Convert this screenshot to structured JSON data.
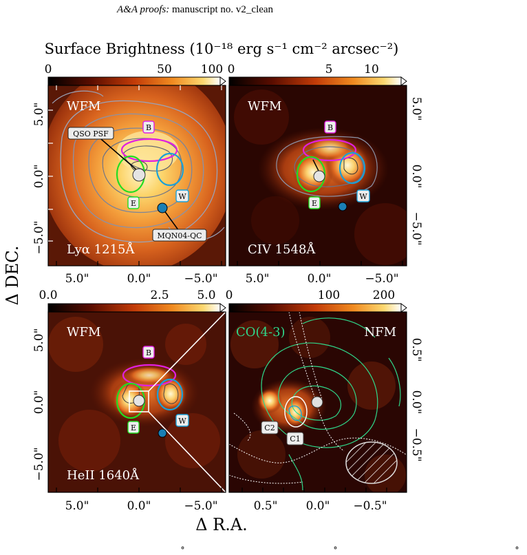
{
  "header": {
    "journal": "A&A proofs:",
    "manuscript": "manuscript no. v2_clean"
  },
  "figure": {
    "top_title": "Surface Brightness (10⁻¹⁸ erg s⁻¹ cm⁻² arcsec⁻²)",
    "ylabel": "Δ DEC.",
    "xlabel": "Δ R.A.",
    "colors": {
      "magenta": "#e020e0",
      "green": "#22dd22",
      "cyan": "#1aa0d8",
      "co_contour": "#2fd88a",
      "qc_dot": "#1a7fb5"
    },
    "panels": [
      {
        "id": "lya",
        "cbar_ticks": [
          "0",
          "50",
          "100"
        ],
        "mode": "WFM",
        "line": "Lyα 1215Å",
        "xticks": [
          "5.0\"",
          "0.0\"",
          "−5.0\""
        ],
        "yticks": [
          "5.0\"",
          "0.0\"",
          "−5.0\""
        ],
        "labels": {
          "B": "B",
          "E": "E",
          "W": "W"
        },
        "qso_label": "QSO PSF",
        "qc_label": "MQN04-QC"
      },
      {
        "id": "civ",
        "cbar_ticks": [
          "0",
          "5",
          "10"
        ],
        "mode": "WFM",
        "line": "CIV 1548Å",
        "xticks": [
          "5.0\"",
          "0.0\"",
          "−5.0\""
        ],
        "yticks": [
          "5.0\"",
          "0.0\"",
          "−5.0\""
        ],
        "labels": {
          "B": "B",
          "E": "E",
          "W": "W"
        }
      },
      {
        "id": "heii",
        "cbar_ticks": [
          "0.0",
          "2.5",
          "5.0"
        ],
        "mode": "WFM",
        "line": "HeII 1640Å",
        "xticks": [
          "5.0\"",
          "0.0\"",
          "−5.0\""
        ],
        "yticks": [
          "5.0\"",
          "0.0\"",
          "−5.0\""
        ],
        "labels": {
          "B": "B",
          "E": "E",
          "W": "W"
        }
      },
      {
        "id": "nfm",
        "cbar_ticks": [
          "0",
          "100",
          "200"
        ],
        "mode": "NFM",
        "line": "CO(4-3)",
        "xticks": [
          "0.5\"",
          "0.0\"",
          "−0.5\""
        ],
        "yticks": [
          "0.5\"",
          "0.0\"",
          "−0.5\""
        ],
        "labels": {
          "C1": "C1",
          "C2": "C2"
        }
      }
    ],
    "footer_marks": [
      "˚",
      "˚",
      "˚"
    ]
  }
}
